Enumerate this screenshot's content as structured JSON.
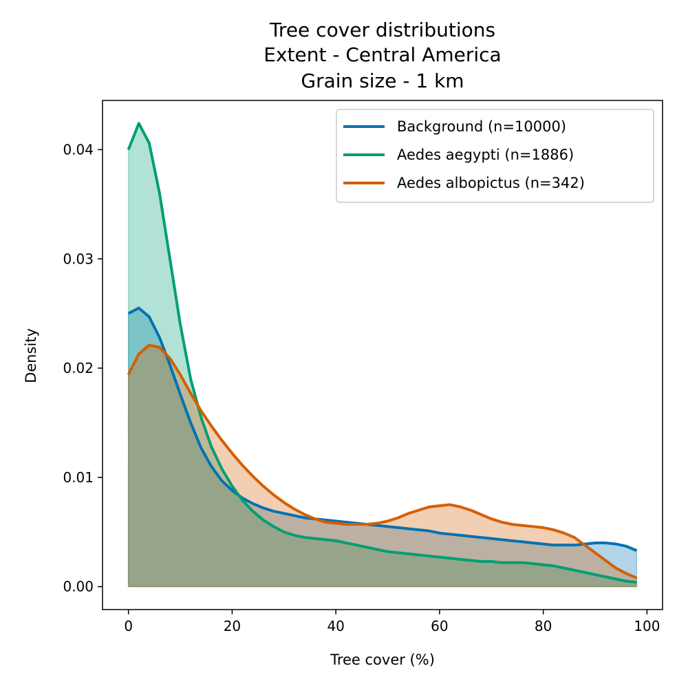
{
  "chart_data": {
    "type": "area",
    "title_lines": [
      "Tree cover distributions",
      "Extent - Central America",
      "Grain size - 1 km"
    ],
    "xlabel": "Tree cover (%)",
    "ylabel": "Density",
    "xlim": [
      -5,
      103
    ],
    "ylim": [
      -0.0021,
      0.0445
    ],
    "xticks": [
      0,
      20,
      40,
      60,
      80,
      100
    ],
    "xtick_labels": [
      "0",
      "20",
      "40",
      "60",
      "80",
      "100"
    ],
    "yticks": [
      0,
      0.01,
      0.02,
      0.03,
      0.04
    ],
    "ytick_labels": [
      "0.00",
      "0.01",
      "0.02",
      "0.03",
      "0.04"
    ],
    "grid": false,
    "legend_position": "top-right",
    "x": [
      0,
      2,
      4,
      6,
      8,
      10,
      12,
      14,
      16,
      18,
      20,
      22,
      24,
      26,
      28,
      30,
      32,
      34,
      36,
      38,
      40,
      42,
      44,
      46,
      48,
      50,
      52,
      54,
      56,
      58,
      60,
      62,
      64,
      66,
      68,
      70,
      72,
      74,
      76,
      78,
      80,
      82,
      84,
      86,
      88,
      90,
      92,
      94,
      96,
      98
    ],
    "series": [
      {
        "name": "Background (n=10000)",
        "color": "#0072b2",
        "values": [
          0.025,
          0.0255,
          0.0247,
          0.0228,
          0.0203,
          0.0176,
          0.015,
          0.0127,
          0.011,
          0.0097,
          0.0088,
          0.0081,
          0.0076,
          0.0072,
          0.0069,
          0.0067,
          0.0065,
          0.0063,
          0.0062,
          0.0061,
          0.006,
          0.0059,
          0.0058,
          0.0057,
          0.0056,
          0.0055,
          0.0054,
          0.0053,
          0.0052,
          0.0051,
          0.0049,
          0.0048,
          0.0047,
          0.0046,
          0.0045,
          0.0044,
          0.0043,
          0.0042,
          0.0041,
          0.004,
          0.0039,
          0.0038,
          0.0038,
          0.0038,
          0.0039,
          0.004,
          0.004,
          0.0039,
          0.0037,
          0.0033
        ]
      },
      {
        "name": "Aedes aegypti (n=1886)",
        "color": "#009e73",
        "values": [
          0.04,
          0.0424,
          0.0406,
          0.036,
          0.03,
          0.024,
          0.019,
          0.0155,
          0.0128,
          0.0108,
          0.0092,
          0.0079,
          0.0069,
          0.0061,
          0.0055,
          0.005,
          0.0047,
          0.0045,
          0.0044,
          0.0043,
          0.0042,
          0.004,
          0.0038,
          0.0036,
          0.0034,
          0.0032,
          0.0031,
          0.003,
          0.0029,
          0.0028,
          0.0027,
          0.0026,
          0.0025,
          0.0024,
          0.0023,
          0.0023,
          0.0022,
          0.0022,
          0.0022,
          0.0021,
          0.002,
          0.0019,
          0.0017,
          0.0015,
          0.0013,
          0.0011,
          0.0009,
          0.0007,
          0.0005,
          0.0004
        ]
      },
      {
        "name": "Aedes albopictus (n=342)",
        "color": "#d55e00",
        "values": [
          0.0194,
          0.0213,
          0.0221,
          0.0219,
          0.0209,
          0.0194,
          0.0177,
          0.0161,
          0.0147,
          0.0134,
          0.0122,
          0.0111,
          0.0101,
          0.0092,
          0.0084,
          0.0077,
          0.0071,
          0.0066,
          0.0062,
          0.0059,
          0.0058,
          0.0057,
          0.0057,
          0.0057,
          0.0058,
          0.006,
          0.0063,
          0.0067,
          0.007,
          0.0073,
          0.0074,
          0.0075,
          0.0073,
          0.007,
          0.0066,
          0.0062,
          0.0059,
          0.0057,
          0.0056,
          0.0055,
          0.0054,
          0.0052,
          0.0049,
          0.0045,
          0.0038,
          0.0031,
          0.0024,
          0.0017,
          0.0012,
          0.0008
        ]
      }
    ]
  }
}
